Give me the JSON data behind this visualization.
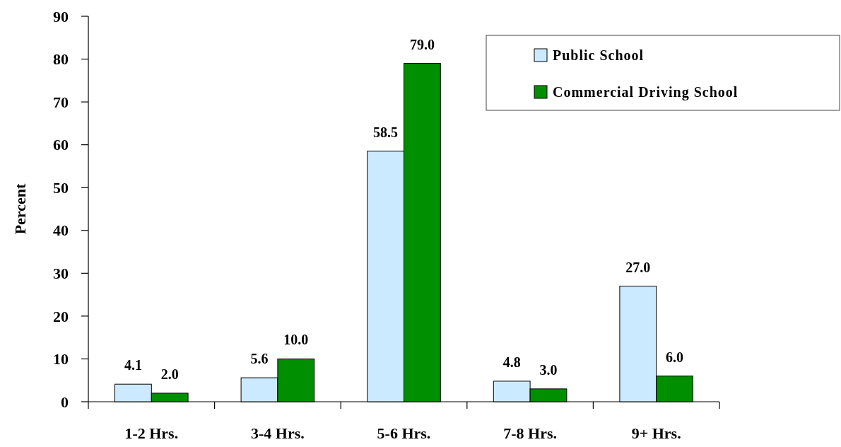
{
  "chart_data": {
    "type": "bar",
    "ylabel": "Percent",
    "categories": [
      "1-2 Hrs.",
      "3-4 Hrs.",
      "5-6 Hrs.",
      "7-8 Hrs.",
      "9+ Hrs."
    ],
    "series": [
      {
        "name": "Public School",
        "color": "#cceaff",
        "values": [
          4.1,
          5.6,
          58.5,
          4.8,
          27.0
        ]
      },
      {
        "name": "Commercial Driving School",
        "color": "#008f00",
        "values": [
          2.0,
          10.0,
          79.0,
          3.0,
          6.0
        ]
      }
    ],
    "ylim": [
      0,
      90
    ],
    "yticks": [
      0,
      10,
      20,
      30,
      40,
      50,
      60,
      70,
      80,
      90
    ],
    "value_labels": [
      [
        "4.1",
        "5.6",
        "58.5",
        "4.8",
        "27.0"
      ],
      [
        "2.0",
        "10.0",
        "79.0",
        "3.0",
        "6.0"
      ]
    ],
    "legend": "top right",
    "grid": false
  }
}
